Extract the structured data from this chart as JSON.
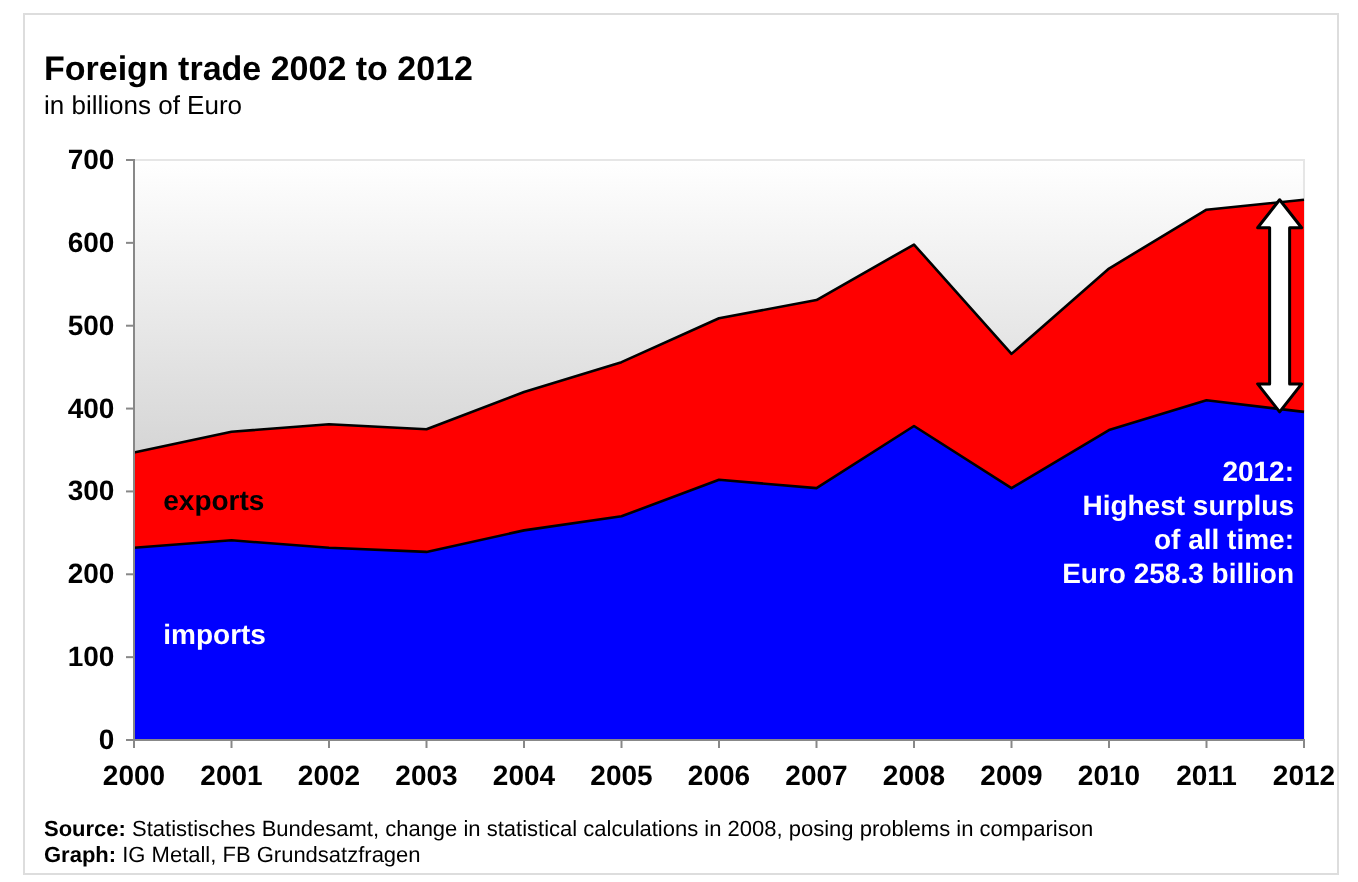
{
  "chart_data": {
    "type": "area",
    "title": "Foreign trade 2002 to 2012",
    "subtitle": "in billions of Euro",
    "x": [
      2000,
      2001,
      2002,
      2003,
      2004,
      2005,
      2006,
      2007,
      2008,
      2009,
      2010,
      2011,
      2012
    ],
    "xlim": [
      2000,
      2012
    ],
    "xticks": [
      2000,
      2001,
      2002,
      2003,
      2004,
      2005,
      2006,
      2007,
      2008,
      2009,
      2010,
      2011,
      2012
    ],
    "ylim": [
      0,
      700
    ],
    "yticks": [
      0,
      100,
      200,
      300,
      400,
      500,
      600,
      700
    ],
    "grid": false,
    "series": [
      {
        "name": "exports",
        "color": "#ff0000",
        "values": [
          347,
          372,
          381,
          375,
          420,
          456,
          509,
          531,
          598,
          466,
          569,
          640,
          652
        ]
      },
      {
        "name": "imports",
        "color": "#0000ff",
        "values": [
          232,
          241,
          232,
          227,
          253,
          270,
          314,
          304,
          379,
          304,
          374,
          410,
          396
        ]
      }
    ],
    "annotations": [
      {
        "text": "2012:\nHighest surplus\nof all time:\nEuro 258.3 billion",
        "x": 2012,
        "y": 263
      },
      "Source: Statistisches Bundesamt, change in statistical calculations in 2008, posing problems in comparison",
      "Graph: IG Metall, FB Grundsatzfragen"
    ]
  }
}
